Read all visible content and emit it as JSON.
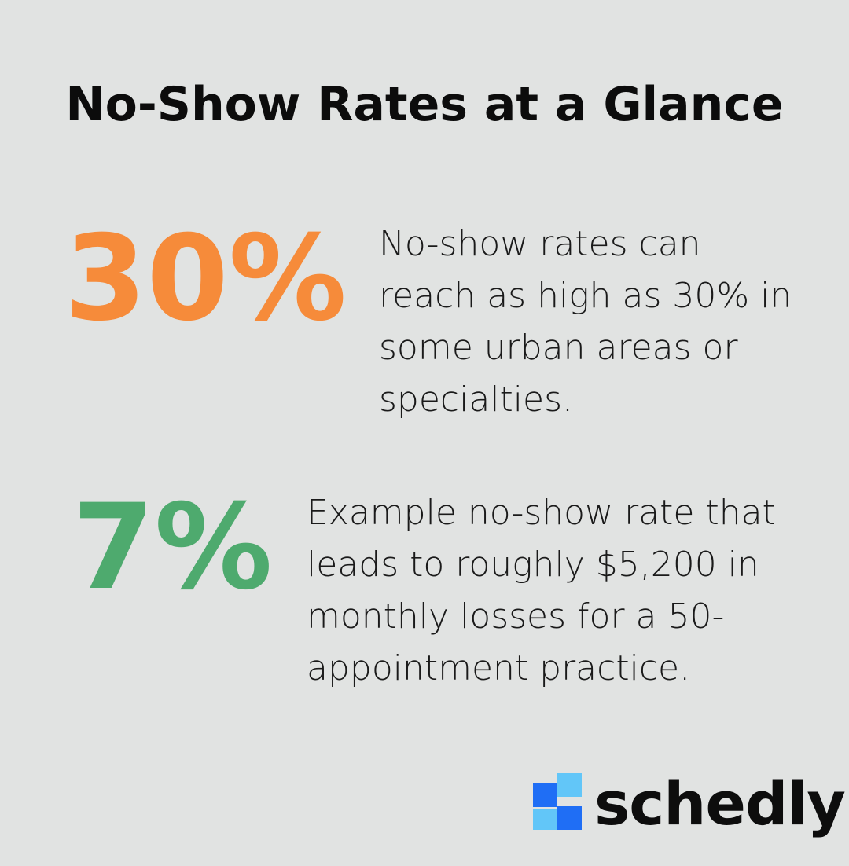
{
  "header": {
    "title": "No-Show Rates at a Glance"
  },
  "stats": [
    {
      "value": "30%",
      "color": "#f68b3a",
      "description": [
        "No-show rates can",
        "reach as high as 30% in",
        "some urban areas or",
        "specialties."
      ]
    },
    {
      "value": "7%",
      "color": "#4eaa6e",
      "description": [
        "Example no-show rate that",
        "leads to roughly $5,200 in",
        "monthly losses for a 50-",
        "appointment practice."
      ]
    }
  ],
  "logo": {
    "text": "schedly"
  }
}
